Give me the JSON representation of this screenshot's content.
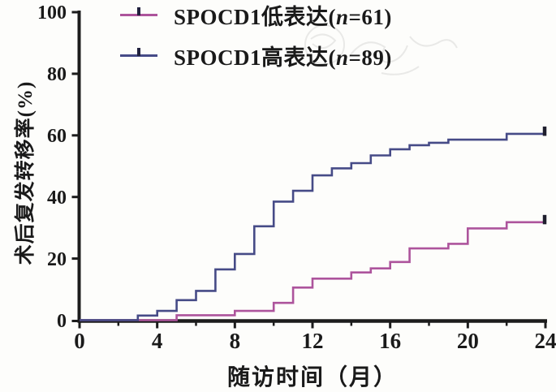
{
  "figure": {
    "background": "#fdfdfb",
    "axis_color": "#1c1c1c",
    "text_color": "#1a1a1a",
    "end_tick_color": "#1f1f2e"
  },
  "legend": {
    "items": [
      {
        "prefix": "SPOCD1低表达(",
        "n": "n",
        "suffix": "=61)",
        "color": "#ad549c"
      },
      {
        "prefix": "SPOCD1高表达(",
        "n": "n",
        "suffix": "=89)",
        "color": "#464b87"
      }
    ]
  },
  "chart_data": {
    "type": "line",
    "subtype": "step-cumulative-incidence",
    "title": "",
    "xlabel": "随访时间（月）",
    "ylabel": "术后复发转移率(%)",
    "xlim": [
      0,
      24
    ],
    "ylim": [
      0,
      100
    ],
    "xticks": [
      0,
      4,
      8,
      12,
      16,
      20,
      24
    ],
    "xticks_minor": [
      2,
      6,
      10,
      14,
      18,
      22
    ],
    "yticks": [
      0,
      20,
      40,
      60,
      80,
      100
    ],
    "grid": false,
    "legend_position": "top-left",
    "series": [
      {
        "name": "SPOCD1低表达(n=61)",
        "color": "#ad549c",
        "n": 61,
        "end_tick": true,
        "points": [
          [
            0,
            0
          ],
          [
            5,
            1.6
          ],
          [
            8,
            3
          ],
          [
            10,
            5.6
          ],
          [
            11,
            10.6
          ],
          [
            12,
            13.5
          ],
          [
            14,
            15.5
          ],
          [
            15,
            16.8
          ],
          [
            16,
            18.9
          ],
          [
            17,
            23.3
          ],
          [
            19,
            24.8
          ],
          [
            20,
            29.8
          ],
          [
            22,
            31.8
          ],
          [
            24,
            31.8
          ]
        ]
      },
      {
        "name": "SPOCD1高表达(n=89)",
        "color": "#464b87",
        "n": 89,
        "end_tick": true,
        "points": [
          [
            0,
            0
          ],
          [
            3,
            1.5
          ],
          [
            4,
            3
          ],
          [
            5,
            6.5
          ],
          [
            6,
            9.5
          ],
          [
            7,
            16.5
          ],
          [
            8,
            21.5
          ],
          [
            9,
            30.5
          ],
          [
            10,
            38.5
          ],
          [
            11,
            42
          ],
          [
            12,
            47
          ],
          [
            13,
            49.3
          ],
          [
            14,
            51
          ],
          [
            15,
            53.5
          ],
          [
            16,
            55.5
          ],
          [
            17,
            56.8
          ],
          [
            18,
            57.6
          ],
          [
            19,
            58.6
          ],
          [
            22,
            60.5
          ],
          [
            24,
            60.5
          ]
        ]
      }
    ]
  }
}
